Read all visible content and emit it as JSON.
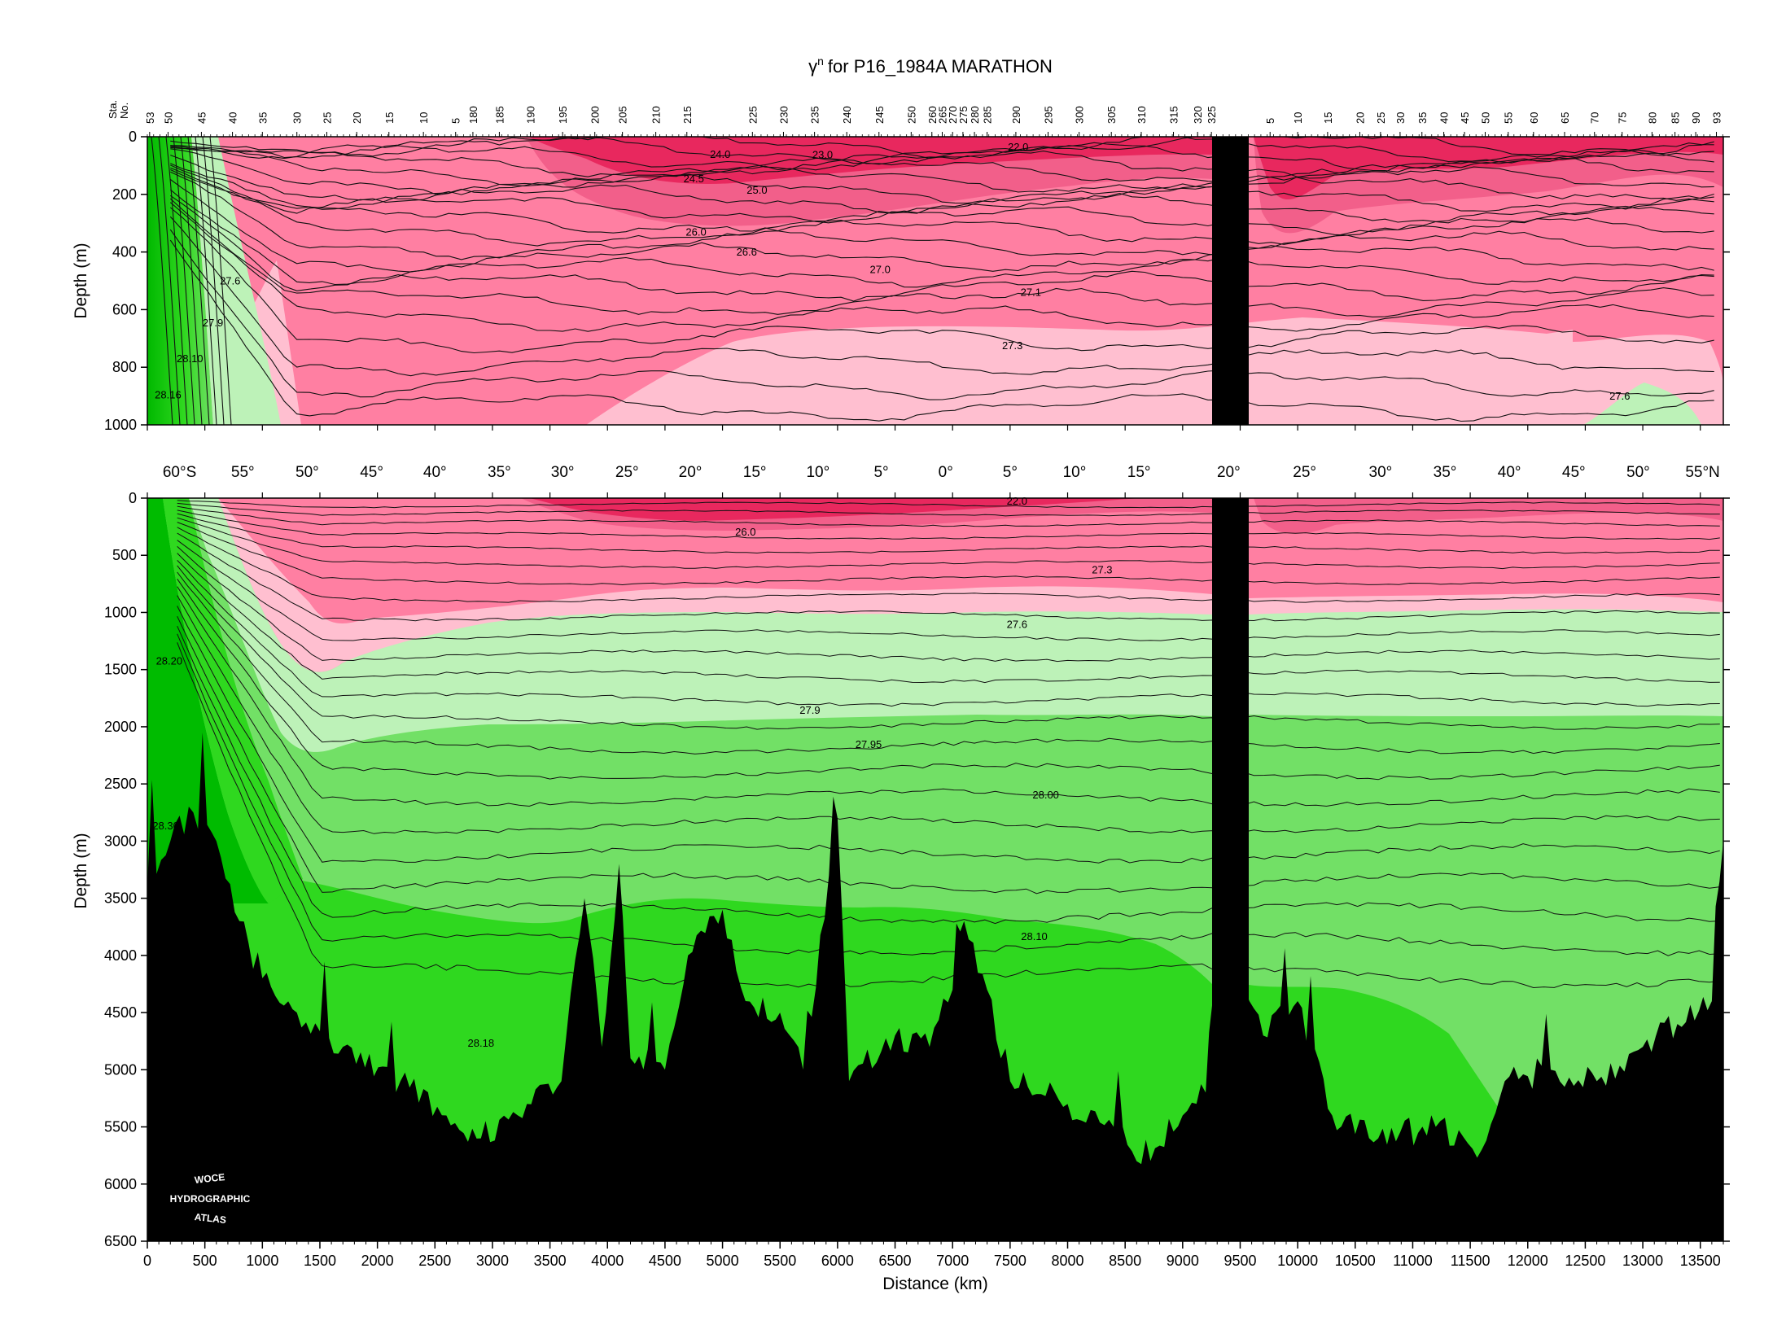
{
  "chart_data": [
    {
      "type": "contour-section",
      "title_symbol": "γ",
      "title_superscript": "n",
      "title_rest": "for P16_1984A MARATHON",
      "ylabel": "Depth (m)",
      "station_header": [
        "Sta.",
        "No."
      ],
      "xlim": [
        0,
        13700
      ],
      "ylim": [
        1000,
        0
      ],
      "y_ticks": [
        0,
        200,
        400,
        600,
        800,
        1000
      ],
      "stations": [
        {
          "label": "53",
          "km": 20
        },
        {
          "label": "50",
          "km": 180
        },
        {
          "label": "45",
          "km": 470
        },
        {
          "label": "40",
          "km": 740
        },
        {
          "label": "35",
          "km": 1000
        },
        {
          "label": "30",
          "km": 1300
        },
        {
          "label": "25",
          "km": 1560
        },
        {
          "label": "20",
          "km": 1820
        },
        {
          "label": "15",
          "km": 2100
        },
        {
          "label": "10",
          "km": 2400
        },
        {
          "label": "5",
          "km": 2680
        },
        {
          "label": "180",
          "km": 2830
        },
        {
          "label": "185",
          "km": 3060
        },
        {
          "label": "190",
          "km": 3330
        },
        {
          "label": "195",
          "km": 3610
        },
        {
          "label": "200",
          "km": 3890
        },
        {
          "label": "205",
          "km": 4130
        },
        {
          "label": "210",
          "km": 4420
        },
        {
          "label": "215",
          "km": 4690
        },
        {
          "label": "225",
          "km": 5260
        },
        {
          "label": "230",
          "km": 5530
        },
        {
          "label": "235",
          "km": 5800
        },
        {
          "label": "240",
          "km": 6080
        },
        {
          "label": "245",
          "km": 6360
        },
        {
          "label": "250",
          "km": 6640
        },
        {
          "label": "260",
          "km": 6820
        },
        {
          "label": "265",
          "km": 6910
        },
        {
          "label": "270",
          "km": 7000
        },
        {
          "label": "275",
          "km": 7090
        },
        {
          "label": "280",
          "km": 7190
        },
        {
          "label": "285",
          "km": 7300
        },
        {
          "label": "290",
          "km": 7550
        },
        {
          "label": "295",
          "km": 7830
        },
        {
          "label": "300",
          "km": 8100
        },
        {
          "label": "305",
          "km": 8380
        },
        {
          "label": "310",
          "km": 8640
        },
        {
          "label": "315",
          "km": 8920
        },
        {
          "label": "320",
          "km": 9130
        },
        {
          "label": "325",
          "km": 9250
        },
        {
          "label": "5",
          "km": 9760
        },
        {
          "label": "10",
          "km": 10000
        },
        {
          "label": "15",
          "km": 10260
        },
        {
          "label": "20",
          "km": 10540
        },
        {
          "label": "25",
          "km": 10720
        },
        {
          "label": "30",
          "km": 10890
        },
        {
          "label": "35",
          "km": 11080
        },
        {
          "label": "40",
          "km": 11270
        },
        {
          "label": "45",
          "km": 11450
        },
        {
          "label": "50",
          "km": 11630
        },
        {
          "label": "55",
          "km": 11830
        },
        {
          "label": "60",
          "km": 12050
        },
        {
          "label": "65",
          "km": 12320
        },
        {
          "label": "70",
          "km": 12580
        },
        {
          "label": "75",
          "km": 12820
        },
        {
          "label": "80",
          "km": 13080
        },
        {
          "label": "85",
          "km": 13280
        },
        {
          "label": "90",
          "km": 13460
        },
        {
          "label": "93",
          "km": 13640
        }
      ],
      "gap_km": [
        9260,
        9580
      ],
      "contour_labels": [
        {
          "text": "24.0",
          "km": 4980,
          "depth": 70
        },
        {
          "text": "23.0",
          "km": 5870,
          "depth": 72
        },
        {
          "text": "22.0",
          "km": 7570,
          "depth": 45
        },
        {
          "text": "24.5",
          "km": 4750,
          "depth": 155
        },
        {
          "text": "25.0",
          "km": 5300,
          "depth": 195
        },
        {
          "text": "26.0",
          "km": 4770,
          "depth": 340
        },
        {
          "text": "26.6",
          "km": 5210,
          "depth": 410
        },
        {
          "text": "27.0",
          "km": 6370,
          "depth": 470
        },
        {
          "text": "27.1",
          "km": 7680,
          "depth": 550
        },
        {
          "text": "27.3",
          "km": 7520,
          "depth": 735
        },
        {
          "text": "27.6",
          "km": 720,
          "depth": 510
        },
        {
          "text": "27.9",
          "km": 570,
          "depth": 655
        },
        {
          "text": "28.10",
          "km": 370,
          "depth": 780
        },
        {
          "text": "28.16",
          "km": 180,
          "depth": 905
        },
        {
          "text": "27.6",
          "km": 12800,
          "depth": 910
        }
      ],
      "bands": [
        {
          "color": "#e8285e",
          "upper": [
            [
              3300,
              0
            ],
            [
              13700,
              0
            ]
          ],
          "lower": [
            [
              3300,
              0
            ],
            [
              3380,
              85
            ],
            [
              4100,
              170
            ],
            [
              4600,
              270
            ],
            [
              5400,
              250
            ],
            [
              6600,
              130
            ],
            [
              7000,
              70
            ],
            [
              7600,
              55
            ],
            [
              8400,
              45
            ],
            [
              9230,
              35
            ]
          ]
        },
        {
          "color": "#f25f8a",
          "upper": [
            [
              3300,
              0
            ],
            [
              3380,
              85
            ],
            [
              4100,
              170
            ],
            [
              4600,
              270
            ],
            [
              5400,
              250
            ],
            [
              6600,
              130
            ],
            [
              7000,
              70
            ],
            [
              7600,
              55
            ],
            [
              8400,
              45
            ],
            [
              9230,
              35
            ]
          ],
          "lower": [
            [
              3260,
              0
            ],
            [
              3300,
              40
            ],
            [
              4100,
              210
            ],
            [
              4600,
              300
            ],
            [
              5400,
              270
            ],
            [
              6600,
              150
            ],
            [
              7000,
              110
            ],
            [
              7600,
              110
            ],
            [
              8400,
              60
            ],
            [
              9230,
              60
            ]
          ]
        },
        {
          "color": "#ff7fa2",
          "upper": [
            [
              20,
              0
            ],
            [
              13700,
              0
            ]
          ],
          "lower": [
            [
              20,
              0
            ],
            [
              13700,
              0
            ]
          ]
        }
      ]
    },
    {
      "type": "contour-section",
      "ylabel": "Depth (m)",
      "xlabel": "Distance (km)",
      "xlim": [
        0,
        13700
      ],
      "ylim": [
        6500,
        0
      ],
      "y_ticks": [
        0,
        500,
        1000,
        1500,
        2000,
        2500,
        3000,
        3500,
        4000,
        4500,
        5000,
        5500,
        6000,
        6500
      ],
      "x_ticks": [
        0,
        500,
        1000,
        1500,
        2000,
        2500,
        3000,
        3500,
        4000,
        4500,
        5000,
        5500,
        6000,
        6500,
        7000,
        7500,
        8000,
        8500,
        9000,
        9500,
        10000,
        10500,
        11000,
        11500,
        12000,
        12500,
        13000,
        13500
      ],
      "latitudes": [
        {
          "label": "60°S",
          "km": 280
        },
        {
          "label": "55°",
          "km": 830
        },
        {
          "label": "50°",
          "km": 1390
        },
        {
          "label": "45°",
          "km": 1950
        },
        {
          "label": "40°",
          "km": 2500
        },
        {
          "label": "35°",
          "km": 3060
        },
        {
          "label": "30°",
          "km": 3610
        },
        {
          "label": "25°",
          "km": 4170
        },
        {
          "label": "20°",
          "km": 4720
        },
        {
          "label": "15°",
          "km": 5280
        },
        {
          "label": "10°",
          "km": 5830
        },
        {
          "label": "5°",
          "km": 6380
        },
        {
          "label": "0°",
          "km": 6940
        },
        {
          "label": "5°",
          "km": 7500
        },
        {
          "label": "10°",
          "km": 8060
        },
        {
          "label": "15°",
          "km": 8620
        },
        {
          "label": "20°",
          "km": 9400
        },
        {
          "label": "25°",
          "km": 10060
        },
        {
          "label": "30°",
          "km": 10720
        },
        {
          "label": "35°",
          "km": 11280
        },
        {
          "label": "40°",
          "km": 11840
        },
        {
          "label": "45°",
          "km": 12400
        },
        {
          "label": "50°",
          "km": 12960
        },
        {
          "label": "55°N",
          "km": 13520
        }
      ],
      "contour_labels": [
        {
          "text": "22.0",
          "km": 7560,
          "depth": 50
        },
        {
          "text": "26.0",
          "km": 5200,
          "depth": 320
        },
        {
          "text": "27.3",
          "km": 8300,
          "depth": 650
        },
        {
          "text": "27.6",
          "km": 7560,
          "depth": 1130
        },
        {
          "text": "28.20",
          "km": 190,
          "depth": 1450
        },
        {
          "text": "27.9",
          "km": 5760,
          "depth": 1880
        },
        {
          "text": "27.95",
          "km": 6270,
          "depth": 2180
        },
        {
          "text": "28.00",
          "km": 7810,
          "depth": 2620
        },
        {
          "text": "28.30",
          "km": 160,
          "depth": 2890
        },
        {
          "text": "28.10",
          "km": 7710,
          "depth": 3860
        },
        {
          "text": "28.18",
          "km": 2900,
          "depth": 4790
        }
      ],
      "logo": [
        "WOCE",
        "HYDROGRAPHIC",
        "ATLAS"
      ]
    }
  ],
  "colors": {
    "pink_dark": "#e8285e",
    "pink_mid": "#f25f8a",
    "pink": "#ff7fa2",
    "pink_light": "#ffbfd0",
    "green_pale": "#bdf2b8",
    "green_light": "#72e066",
    "green": "#2fd81f",
    "green_dark": "#00bb00",
    "ground": "#000000"
  }
}
